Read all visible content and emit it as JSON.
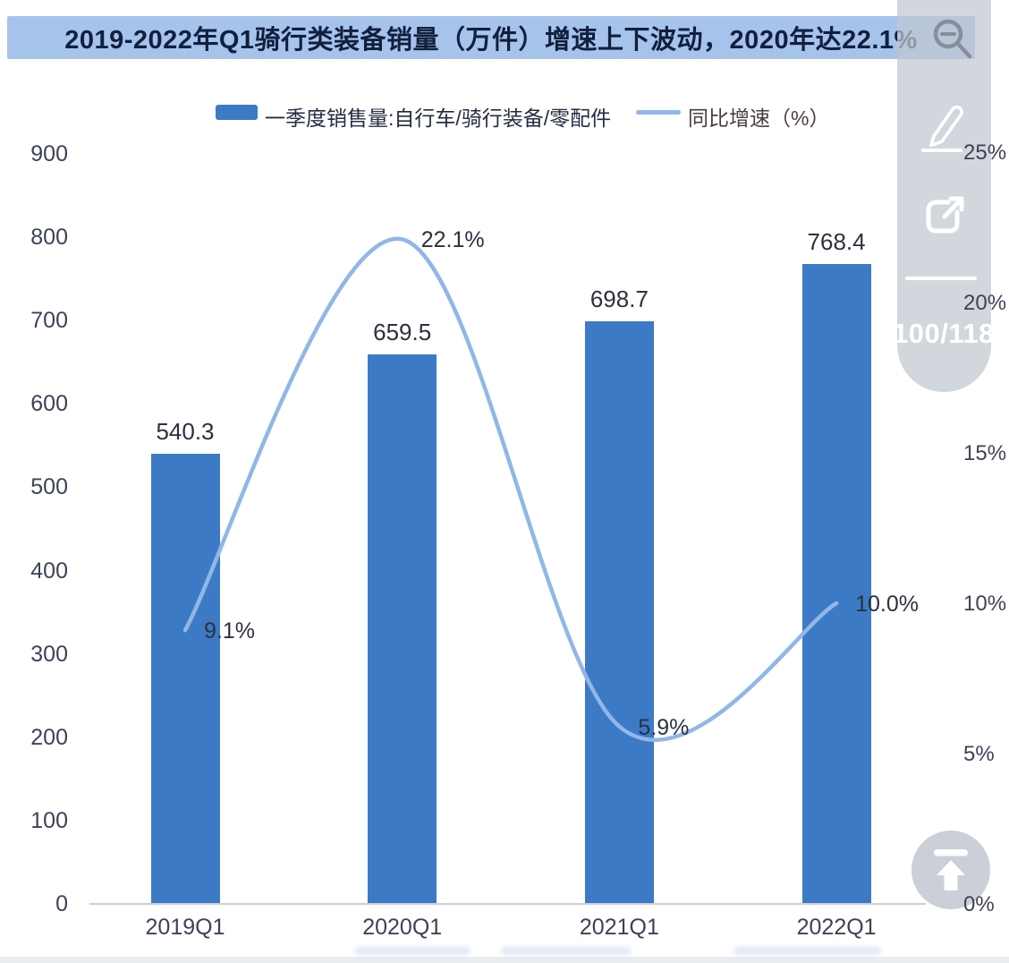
{
  "title": {
    "text": "2019-2022年Q1骑行类装备销量（万件）增速上下波动，2020年达22.1%"
  },
  "legend": {
    "bar_label": "一季度销售量:自行车/骑行装备/零配件",
    "line_label": "同比增速（%）"
  },
  "toolbar": {
    "page_indicator": "100/118",
    "icons": [
      "magnifier-icon",
      "edit-pencil-icon",
      "open-external-icon",
      "back-to-top-icon"
    ]
  },
  "colors": {
    "bar": "#3d7ac6",
    "line": "#91b6e7",
    "title_bg": "#a6c3ec",
    "title_text": "#10203d",
    "axis_text": "#3d4356",
    "value_text": "#2c3140",
    "toolbar_bg": "#c1c7d1"
  },
  "chart_data": {
    "type": "bar",
    "subtype": "combo-bar-line",
    "title": "2019-2022年Q1骑行类装备销量（万件）增速上下波动，2020年达22.1%",
    "categories": [
      "2019Q1",
      "2020Q1",
      "2021Q1",
      "2022Q1"
    ],
    "series": [
      {
        "name": "一季度销售量:自行车/骑行装备/零配件",
        "type": "bar",
        "axis": "left",
        "values": [
          540.3,
          659.5,
          698.7,
          768.4
        ],
        "value_labels": [
          "540.3",
          "659.5",
          "698.7",
          "768.4"
        ]
      },
      {
        "name": "同比增速（%）",
        "type": "line",
        "axis": "right",
        "values": [
          9.1,
          22.1,
          5.9,
          10.0
        ],
        "point_labels": [
          "9.1%",
          "22.1%",
          "5.9%",
          "10.0%"
        ]
      }
    ],
    "left_axis": {
      "min": 0,
      "max": 900,
      "ticks": [
        900,
        800,
        700,
        600,
        500,
        400,
        300,
        200,
        100,
        0
      ]
    },
    "right_axis": {
      "min": 0,
      "max": 25,
      "ticks": [
        25,
        20,
        15,
        10,
        5,
        0
      ],
      "tick_labels": [
        "25%",
        "20%",
        "15%",
        "10%",
        "5%",
        "0%"
      ]
    },
    "grid": false,
    "legend_position": "top",
    "smooth_line": true
  }
}
